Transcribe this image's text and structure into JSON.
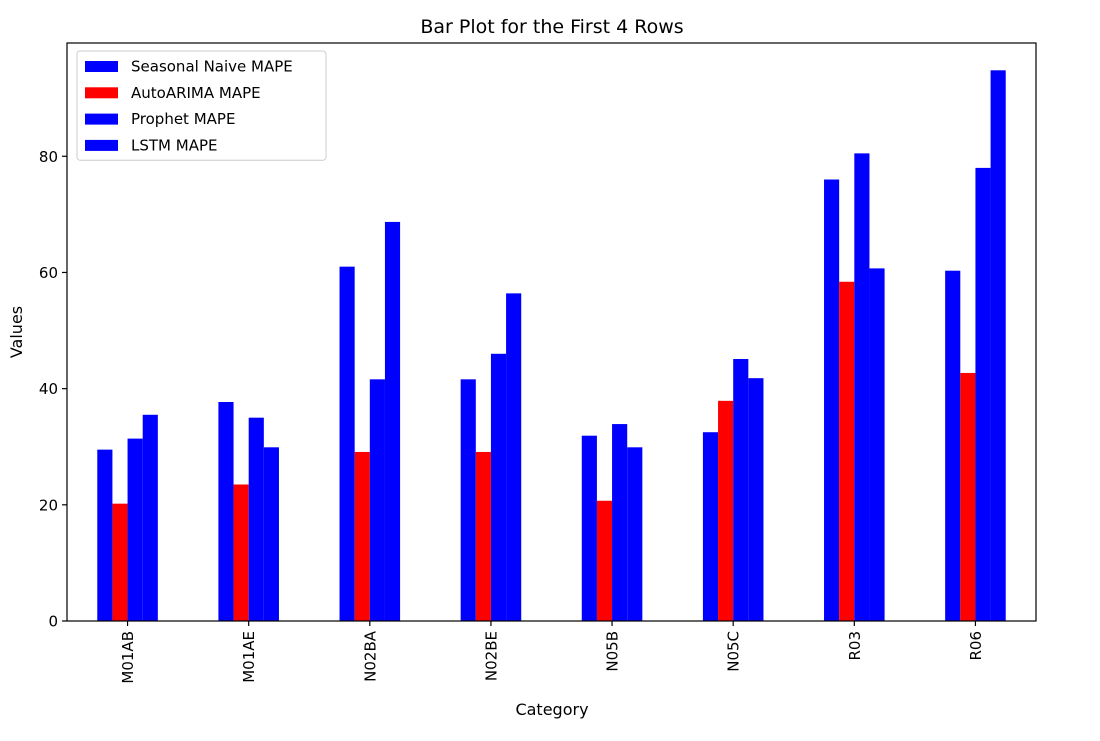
{
  "chart_data": {
    "type": "bar",
    "title": "Bar Plot for the First 4 Rows",
    "xlabel": "Category",
    "ylabel": "Values",
    "categories": [
      "M01AB",
      "M01AE",
      "N02BA",
      "N02BE",
      "N05B",
      "N05C",
      "R03",
      "R06"
    ],
    "series": [
      {
        "name": "Seasonal Naive MAPE",
        "color": "#0000ff",
        "values": [
          29.5,
          37.7,
          61.0,
          41.6,
          31.9,
          32.5,
          76.0,
          60.3
        ]
      },
      {
        "name": "AutoARIMA MAPE",
        "color": "#ff0000",
        "values": [
          20.2,
          23.5,
          29.1,
          29.1,
          20.7,
          37.9,
          58.4,
          42.7
        ]
      },
      {
        "name": "Prophet MAPE",
        "color": "#0000ff",
        "values": [
          31.4,
          35.0,
          41.6,
          46.0,
          33.9,
          45.1,
          80.5,
          78.0
        ]
      },
      {
        "name": "LSTM MAPE",
        "color": "#0000ff",
        "values": [
          35.5,
          29.9,
          68.7,
          56.4,
          29.9,
          41.8,
          60.7,
          94.8
        ]
      }
    ],
    "ylim": [
      0,
      99.5
    ],
    "yticks": [
      0,
      20,
      40,
      60,
      80
    ],
    "grid": false,
    "legend_position": "top-left"
  }
}
